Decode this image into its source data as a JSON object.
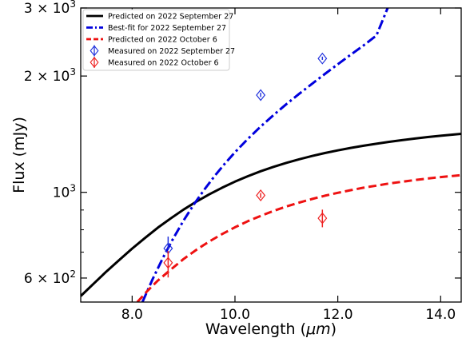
{
  "chart_data": {
    "type": "scatter",
    "xlabel": "Wavelength (μm)",
    "ylabel": "Flux (mJy)",
    "xlim": [
      7.0,
      14.4
    ],
    "ylim": [
      520,
      3000
    ],
    "yscale": "log",
    "grid": false,
    "legend_position": "top-left",
    "x_ticks": [
      {
        "value": 8.0,
        "label": "8.0"
      },
      {
        "value": 10.0,
        "label": "10.0"
      },
      {
        "value": 12.0,
        "label": "12.0"
      },
      {
        "value": 14.0,
        "label": "14.0"
      }
    ],
    "y_ticks": [
      {
        "value": 600,
        "mantissa": "6",
        "exponent": "2"
      },
      {
        "value": 1000,
        "mantissa": "",
        "exponent": "3"
      },
      {
        "value": 2000,
        "mantissa": "2",
        "exponent": "3"
      },
      {
        "value": 3000,
        "mantissa": "3",
        "exponent": "3"
      }
    ],
    "y_minor_ticks": [
      700,
      800,
      900
    ],
    "series": [
      {
        "name": "Predicted on 2022 September 27",
        "kind": "line",
        "style": "solid",
        "color": "#000000",
        "x": [
          7.0,
          7.25,
          7.5,
          7.75,
          8.0,
          8.25,
          8.5,
          8.75,
          9.0,
          9.25,
          9.5,
          9.75,
          10.0,
          10.25,
          10.5,
          10.75,
          11.0,
          11.25,
          11.5,
          11.75,
          12.0,
          12.25,
          12.5,
          12.75,
          13.0,
          13.25,
          13.5,
          13.75,
          14.0,
          14.25,
          14.4
        ],
        "y": [
          539,
          580,
          624,
          668,
          715,
          762,
          810,
          856,
          902,
          946,
          988,
          1028,
          1066,
          1101,
          1134,
          1164,
          1192,
          1218,
          1242,
          1264,
          1284,
          1303,
          1320,
          1336,
          1351,
          1365,
          1378,
          1390,
          1401,
          1411,
          1417
        ]
      },
      {
        "name": "Best-fit for 2022 September 27",
        "kind": "line",
        "style": "dashdot",
        "color": "#0000dd",
        "x": [
          8.2,
          8.4,
          8.6,
          8.8,
          9.0,
          9.2,
          9.4,
          9.6,
          9.8,
          10.0,
          10.25,
          10.5,
          10.75,
          11.0,
          11.25,
          11.5,
          11.75,
          12.0,
          12.25,
          12.5,
          12.75,
          12.97
        ],
        "y": [
          520,
          597,
          677,
          760,
          845,
          930,
          1015,
          1100,
          1185,
          1270,
          1375,
          1480,
          1585,
          1692,
          1800,
          1910,
          2025,
          2145,
          2270,
          2400,
          2545,
          3000
        ]
      },
      {
        "name": "Predicted on 2022 October 6",
        "kind": "line",
        "style": "dashed",
        "color": "#ee1111",
        "x": [
          8.1,
          8.3,
          8.5,
          8.75,
          9.0,
          9.25,
          9.5,
          9.75,
          10.0,
          10.25,
          10.5,
          10.75,
          11.0,
          11.25,
          11.5,
          11.75,
          12.0,
          12.25,
          12.5,
          12.75,
          13.0,
          13.25,
          13.5,
          13.75,
          14.0,
          14.25,
          14.4
        ],
        "y": [
          520,
          556,
          591,
          631,
          672,
          710,
          746,
          780,
          812,
          842,
          869,
          895,
          919,
          941,
          961,
          980,
          997,
          1013,
          1028,
          1041,
          1054,
          1065,
          1076,
          1086,
          1095,
          1103,
          1108
        ]
      },
      {
        "name": "Measured on 2022 September 27",
        "kind": "points",
        "marker": "diamond",
        "color": "#2233dd",
        "x": [
          8.7,
          10.5,
          11.7
        ],
        "y": [
          716,
          1785,
          2220
        ],
        "y_err_low": [
          711,
          1765,
          2202
        ],
        "y_err_high": [
          768,
          1810,
          2245
        ]
      },
      {
        "name": "Measured on 2022 October 6",
        "kind": "points",
        "marker": "diamond",
        "color": "#ee2222",
        "x": [
          8.7,
          10.5,
          11.7
        ],
        "y": [
          657,
          982,
          857
        ],
        "y_err_low": [
          602,
          967,
          812
        ],
        "y_err_high": [
          705,
          996,
          902
        ]
      }
    ]
  }
}
